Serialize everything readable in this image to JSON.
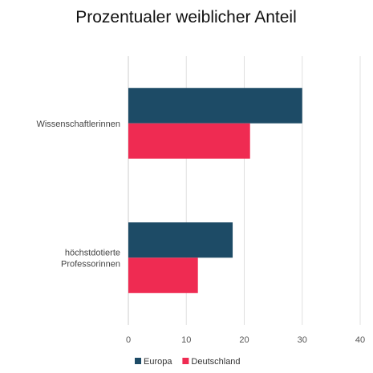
{
  "chart_data": {
    "type": "bar",
    "orientation": "horizontal",
    "title": "Prozentualer weiblicher Anteil",
    "categories": [
      [
        "Wissenschaftlerinnen"
      ],
      [
        "höchstdotierte",
        "Professorinnen"
      ]
    ],
    "series": [
      {
        "name": "Europa",
        "values": [
          30,
          18
        ],
        "color": "#1d4b66"
      },
      {
        "name": "Deutschland",
        "values": [
          21,
          12
        ],
        "color": "#ef2b52"
      }
    ],
    "xlim": [
      0,
      40
    ],
    "xticks": [
      0,
      10,
      20,
      30,
      40
    ],
    "grid": true,
    "legend_position": "bottom"
  }
}
